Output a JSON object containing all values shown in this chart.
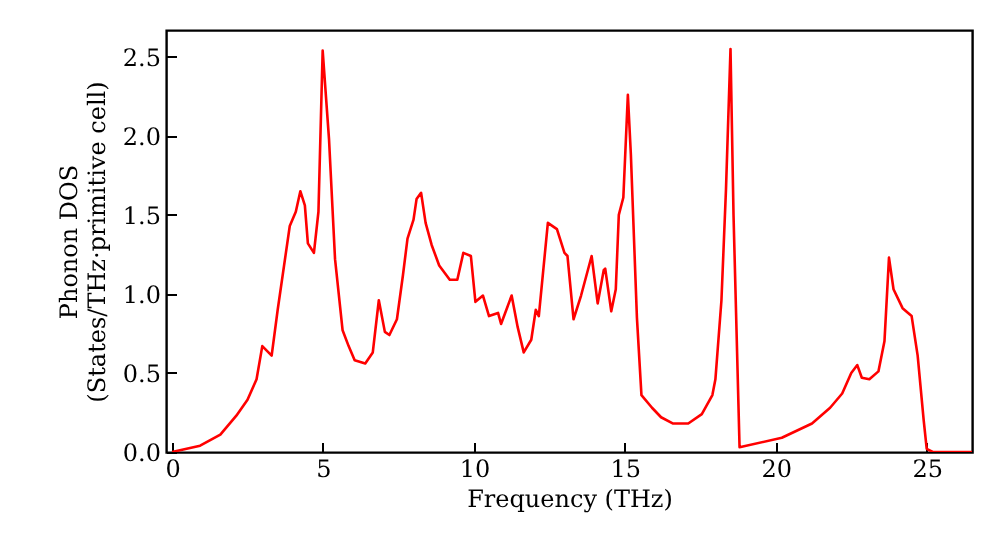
{
  "chart_data": {
    "type": "line",
    "xlabel": "Frequency (THz)",
    "ylabel": "Phonon DOS\n(States/THz·primitive cell)",
    "xlim": [
      -0.2,
      26.5
    ],
    "ylim": [
      0,
      2.67
    ],
    "xticks": [
      0,
      5,
      10,
      15,
      20,
      25
    ],
    "yticks": [
      {
        "value": 0,
        "label": "0.0"
      },
      {
        "value": 0.5,
        "label": "0.5"
      },
      {
        "value": 1,
        "label": "1.0"
      },
      {
        "value": 1.5,
        "label": "1.5"
      },
      {
        "value": 2,
        "label": "2.0"
      },
      {
        "value": 2.5,
        "label": "2.5"
      }
    ],
    "grid": false,
    "marker": "none",
    "line_style": "solid",
    "x": [
      0,
      0.93,
      1.6,
      2.13,
      2.5,
      2.8,
      2.99,
      3.3,
      3.5,
      3.9,
      4.1,
      4.25,
      4.4,
      4.5,
      4.7,
      4.85,
      4.99,
      5.2,
      5.4,
      5.65,
      5.85,
      6.05,
      6.4,
      6.65,
      6.85,
      7.05,
      7.2,
      7.45,
      7.65,
      7.8,
      8.0,
      8.1,
      8.25,
      8.4,
      8.6,
      8.85,
      9.2,
      9.45,
      9.65,
      9.9,
      10.05,
      10.3,
      10.5,
      10.8,
      10.9,
      11.25,
      11.45,
      11.65,
      11.9,
      12.05,
      12.15,
      12.45,
      12.75,
      13.0,
      13.1,
      13.3,
      13.55,
      13.9,
      14.1,
      14.3,
      14.35,
      14.55,
      14.7,
      14.8,
      14.95,
      15.1,
      15.2,
      15.4,
      15.55,
      15.9,
      16.2,
      16.6,
      17.1,
      17.55,
      17.9,
      18.0,
      18.2,
      18.35,
      18.5,
      18.6,
      18.8,
      20.2,
      21.2,
      21.8,
      22.2,
      22.5,
      22.7,
      22.85,
      23.1,
      23.4,
      23.6,
      23.75,
      23.9,
      24.2,
      24.5,
      24.7,
      24.9,
      25.0,
      25.2,
      26.5
    ],
    "series": [
      {
        "color": "#ff0000",
        "values": [
          0,
          0.04,
          0.11,
          0.23,
          0.33,
          0.46,
          0.67,
          0.61,
          0.9,
          1.43,
          1.52,
          1.65,
          1.56,
          1.32,
          1.26,
          1.52,
          2.54,
          1.98,
          1.22,
          0.77,
          0.67,
          0.58,
          0.56,
          0.63,
          0.96,
          0.76,
          0.74,
          0.84,
          1.12,
          1.35,
          1.47,
          1.6,
          1.64,
          1.45,
          1.31,
          1.18,
          1.09,
          1.09,
          1.26,
          1.24,
          0.95,
          0.99,
          0.86,
          0.88,
          0.81,
          0.99,
          0.79,
          0.63,
          0.71,
          0.9,
          0.86,
          1.45,
          1.41,
          1.26,
          1.24,
          0.84,
          0.99,
          1.24,
          0.94,
          1.15,
          1.16,
          0.89,
          1.03,
          1.5,
          1.61,
          2.26,
          1.88,
          0.85,
          0.36,
          0.28,
          0.22,
          0.18,
          0.18,
          0.24,
          0.36,
          0.46,
          0.96,
          1.66,
          2.55,
          1.5,
          0.03,
          0.09,
          0.18,
          0.28,
          0.37,
          0.5,
          0.55,
          0.47,
          0.46,
          0.51,
          0.7,
          1.23,
          1.03,
          0.91,
          0.86,
          0.61,
          0.2,
          0.02,
          0,
          0
        ]
      }
    ]
  }
}
